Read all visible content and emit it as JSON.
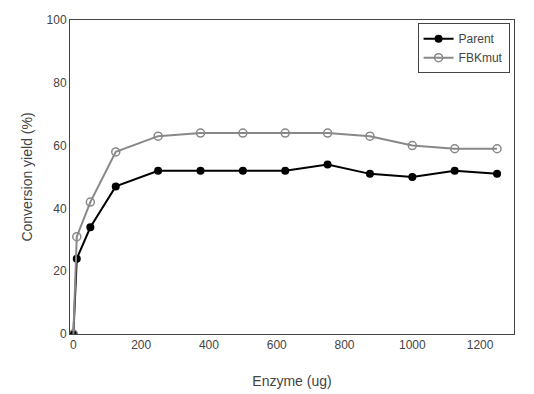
{
  "chart_data": {
    "type": "line",
    "x": [
      0,
      10,
      50,
      125,
      250,
      375,
      500,
      625,
      750,
      875,
      1000,
      1125,
      1250
    ],
    "series": [
      {
        "name": "Parent",
        "color": "#000000",
        "marker": "circle",
        "values": [
          0,
          24,
          34,
          47,
          52,
          52,
          52,
          52,
          54,
          51,
          50,
          52,
          51
        ]
      },
      {
        "name": "FBKmut",
        "color": "#888888",
        "marker": "circle-open",
        "values": [
          0,
          31,
          42,
          58,
          63,
          64,
          64,
          64,
          64,
          63,
          60,
          59,
          59
        ]
      }
    ],
    "xlabel": "Enzyme (ug)",
    "ylabel": "Conversion yield (%)",
    "xlim": [
      -10,
      1300
    ],
    "ylim": [
      0,
      100
    ],
    "xticks": [
      0,
      200,
      400,
      600,
      800,
      1000,
      1200
    ],
    "yticks": [
      0,
      20,
      40,
      60,
      80,
      100
    ],
    "grid": false,
    "legend": "upper right"
  }
}
